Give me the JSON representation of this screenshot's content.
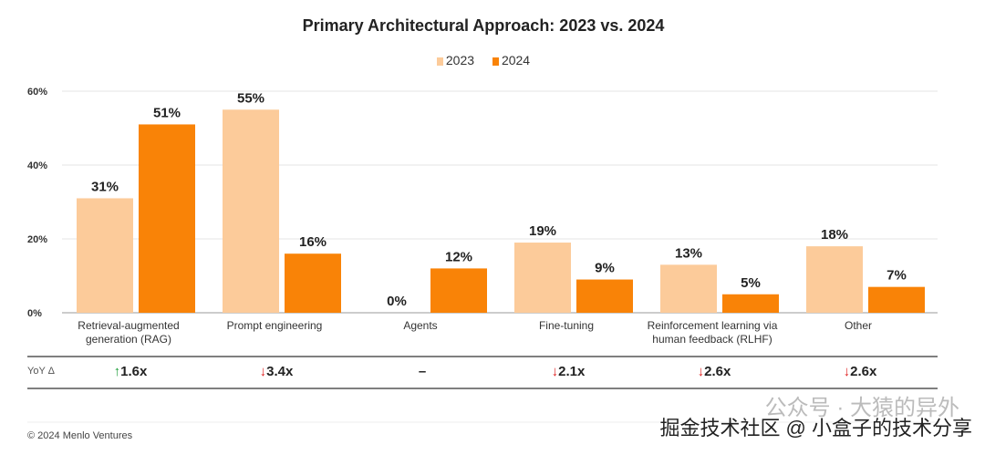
{
  "chart_data": {
    "type": "bar",
    "title": "Primary Architectural Approach: 2023 vs. 2024",
    "categories": [
      "Retrieval-augmented generation (RAG)",
      "Prompt engineering",
      "Agents",
      "Fine-tuning",
      "Reinforcement learning via human feedback (RLHF)",
      "Other"
    ],
    "category_lines": [
      [
        "Retrieval-augmented",
        "generation (RAG)"
      ],
      [
        "Prompt engineering"
      ],
      [
        "Agents"
      ],
      [
        "Fine-tuning"
      ],
      [
        "Reinforcement learning via",
        "human feedback (RLHF)"
      ],
      [
        "Other"
      ]
    ],
    "series": [
      {
        "name": "2023",
        "color": "#fccb9a",
        "values": [
          31,
          55,
          0,
          19,
          13,
          18
        ]
      },
      {
        "name": "2024",
        "color": "#f98307",
        "values": [
          51,
          16,
          12,
          9,
          5,
          7
        ]
      }
    ],
    "ylim": [
      0,
      60
    ],
    "yticks": [
      "0%",
      "20%",
      "40%",
      "60%"
    ],
    "yticks_values": [
      0,
      20,
      40,
      60
    ],
    "grid": true,
    "legend": "top-center",
    "data_label_suffix": "%"
  },
  "yoy": {
    "label": "YoY Δ",
    "values": [
      {
        "dir": "up",
        "arrow": "↑",
        "text": "1.6x"
      },
      {
        "dir": "down",
        "arrow": "↓",
        "text": "3.4x"
      },
      {
        "dir": "none",
        "arrow": "",
        "text": "–"
      },
      {
        "dir": "down",
        "arrow": "↓",
        "text": "2.1x"
      },
      {
        "dir": "down",
        "arrow": "↓",
        "text": "2.6x"
      },
      {
        "dir": "down",
        "arrow": "↓",
        "text": "2.6x"
      }
    ],
    "colors": {
      "up": "#1e9e3a",
      "down": "#e02020"
    }
  },
  "footer": "© 2024 Menlo Ventures",
  "watermark": {
    "line1": "公众号 · 大猿的异外",
    "line2": "掘金技术社区 @ 小盒子的技术分享"
  }
}
